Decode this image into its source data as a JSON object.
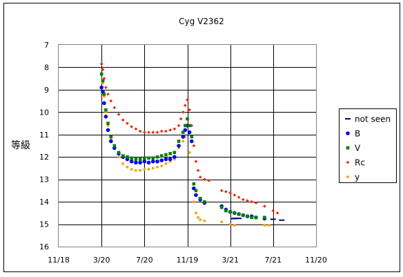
{
  "chart_data": {
    "type": "scatter",
    "title": "Cyg V2362",
    "xlabel": "",
    "ylabel": "等級",
    "x_ticks": [
      "11/18",
      "3/20",
      "7/20",
      "11/19",
      "3/21",
      "7/21",
      "11/20"
    ],
    "y_ticks": [
      7,
      8,
      9,
      10,
      11,
      12,
      13,
      14,
      15,
      16
    ],
    "xlim": [
      0,
      6
    ],
    "ylim": [
      7,
      16
    ],
    "y_inverted": true,
    "grid": true,
    "legend_position": "right",
    "series": [
      {
        "name": "not seen",
        "color": "#000080",
        "marker": "dash",
        "points": [
          [
            4.08,
            14.75
          ],
          [
            4.12,
            14.74
          ],
          [
            4.2,
            14.74
          ],
          [
            5.0,
            14.78
          ],
          [
            5.2,
            14.82
          ]
        ]
      },
      {
        "name": "B",
        "color": "#0000ff",
        "marker": "circle",
        "points": [
          [
            1.0,
            8.9
          ],
          [
            1.03,
            9.1
          ],
          [
            1.06,
            9.6
          ],
          [
            1.1,
            10.2
          ],
          [
            1.15,
            10.8
          ],
          [
            1.22,
            11.3
          ],
          [
            1.3,
            11.6
          ],
          [
            1.4,
            11.85
          ],
          [
            1.5,
            12.0
          ],
          [
            1.6,
            12.1
          ],
          [
            1.7,
            12.2
          ],
          [
            1.8,
            12.25
          ],
          [
            1.9,
            12.25
          ],
          [
            2.0,
            12.2
          ],
          [
            2.1,
            12.25
          ],
          [
            2.2,
            12.2
          ],
          [
            2.3,
            12.2
          ],
          [
            2.4,
            12.15
          ],
          [
            2.5,
            12.1
          ],
          [
            2.6,
            12.1
          ],
          [
            2.7,
            12.0
          ],
          [
            2.8,
            11.5
          ],
          [
            2.9,
            11.1
          ],
          [
            2.95,
            10.8
          ],
          [
            3.0,
            10.6
          ],
          [
            3.05,
            10.9
          ],
          [
            3.1,
            11.3
          ],
          [
            3.15,
            13.4
          ],
          [
            3.2,
            13.7
          ],
          [
            3.3,
            13.9
          ],
          [
            3.4,
            14.05
          ],
          [
            3.8,
            14.2
          ],
          [
            3.9,
            14.35
          ],
          [
            4.0,
            14.45
          ],
          [
            4.1,
            14.5
          ],
          [
            4.2,
            14.55
          ],
          [
            4.3,
            14.6
          ],
          [
            4.4,
            14.65
          ],
          [
            4.5,
            14.65
          ],
          [
            4.6,
            14.7
          ],
          [
            4.8,
            14.75
          ]
        ]
      },
      {
        "name": "V",
        "color": "#008000",
        "marker": "square",
        "points": [
          [
            1.0,
            8.3
          ],
          [
            1.03,
            8.6
          ],
          [
            1.06,
            9.2
          ],
          [
            1.1,
            9.9
          ],
          [
            1.15,
            10.5
          ],
          [
            1.22,
            11.1
          ],
          [
            1.3,
            11.5
          ],
          [
            1.4,
            11.8
          ],
          [
            1.5,
            11.95
          ],
          [
            1.6,
            12.0
          ],
          [
            1.7,
            12.05
          ],
          [
            1.8,
            12.1
          ],
          [
            1.9,
            12.1
          ],
          [
            2.0,
            12.05
          ],
          [
            2.1,
            12.05
          ],
          [
            2.2,
            12.05
          ],
          [
            2.3,
            12.0
          ],
          [
            2.4,
            11.95
          ],
          [
            2.5,
            11.9
          ],
          [
            2.6,
            11.85
          ],
          [
            2.7,
            11.8
          ],
          [
            2.8,
            11.3
          ],
          [
            2.9,
            10.9
          ],
          [
            2.95,
            10.6
          ],
          [
            3.0,
            10.3
          ],
          [
            3.05,
            10.6
          ],
          [
            3.1,
            11.1
          ],
          [
            3.15,
            13.2
          ],
          [
            3.2,
            13.5
          ],
          [
            3.3,
            13.85
          ],
          [
            3.4,
            14.0
          ],
          [
            3.8,
            14.25
          ],
          [
            3.9,
            14.4
          ],
          [
            4.0,
            14.45
          ],
          [
            4.1,
            14.5
          ],
          [
            4.2,
            14.55
          ],
          [
            4.3,
            14.6
          ],
          [
            4.4,
            14.65
          ],
          [
            4.5,
            14.7
          ],
          [
            4.6,
            14.7
          ],
          [
            4.8,
            14.7
          ]
        ]
      },
      {
        "name": "Rc",
        "color": "#ff2000",
        "marker": "diamond",
        "points": [
          [
            1.0,
            7.85
          ],
          [
            1.03,
            8.1
          ],
          [
            1.06,
            8.5
          ],
          [
            1.1,
            8.9
          ],
          [
            1.15,
            9.2
          ],
          [
            1.22,
            9.5
          ],
          [
            1.3,
            9.8
          ],
          [
            1.4,
            10.1
          ],
          [
            1.5,
            10.35
          ],
          [
            1.6,
            10.5
          ],
          [
            1.7,
            10.65
          ],
          [
            1.8,
            10.75
          ],
          [
            1.9,
            10.85
          ],
          [
            2.0,
            10.9
          ],
          [
            2.1,
            10.9
          ],
          [
            2.2,
            10.9
          ],
          [
            2.3,
            10.9
          ],
          [
            2.4,
            10.85
          ],
          [
            2.5,
            10.85
          ],
          [
            2.6,
            10.8
          ],
          [
            2.7,
            10.75
          ],
          [
            2.8,
            10.6
          ],
          [
            2.85,
            10.3
          ],
          [
            2.9,
            10.0
          ],
          [
            2.95,
            9.7
          ],
          [
            3.0,
            9.45
          ],
          [
            3.05,
            9.9
          ],
          [
            3.1,
            10.6
          ],
          [
            3.15,
            11.5
          ],
          [
            3.2,
            12.2
          ],
          [
            3.25,
            12.6
          ],
          [
            3.3,
            12.9
          ],
          [
            3.4,
            13.0
          ],
          [
            3.5,
            13.05
          ],
          [
            3.8,
            13.5
          ],
          [
            3.9,
            13.55
          ],
          [
            4.0,
            13.6
          ],
          [
            4.1,
            13.7
          ],
          [
            4.2,
            13.8
          ],
          [
            4.3,
            13.9
          ],
          [
            4.4,
            13.95
          ],
          [
            4.5,
            14.0
          ],
          [
            4.6,
            14.05
          ],
          [
            4.8,
            14.2
          ],
          [
            5.0,
            14.4
          ],
          [
            5.1,
            14.5
          ]
        ]
      },
      {
        "name": "y",
        "color": "#ffa000",
        "marker": "circle-small",
        "points": [
          [
            1.03,
            8.7
          ],
          [
            1.06,
            9.3
          ],
          [
            1.1,
            10.0
          ],
          [
            1.15,
            10.6
          ],
          [
            1.22,
            11.2
          ],
          [
            1.3,
            11.6
          ],
          [
            1.4,
            12.0
          ],
          [
            1.5,
            12.3
          ],
          [
            1.6,
            12.45
          ],
          [
            1.7,
            12.55
          ],
          [
            1.8,
            12.6
          ],
          [
            1.9,
            12.6
          ],
          [
            2.0,
            12.55
          ],
          [
            2.1,
            12.55
          ],
          [
            2.2,
            12.5
          ],
          [
            2.3,
            12.45
          ],
          [
            2.4,
            12.4
          ],
          [
            2.5,
            12.3
          ],
          [
            2.6,
            12.2
          ],
          [
            2.7,
            12.1
          ],
          [
            2.8,
            11.6
          ],
          [
            2.9,
            11.3
          ],
          [
            2.95,
            11.1
          ],
          [
            3.05,
            11.8
          ],
          [
            3.15,
            14.0
          ],
          [
            3.2,
            14.5
          ],
          [
            3.25,
            14.7
          ],
          [
            3.3,
            14.8
          ],
          [
            3.4,
            14.85
          ],
          [
            3.8,
            14.9
          ],
          [
            4.0,
            15.0
          ],
          [
            4.1,
            15.05
          ],
          [
            4.8,
            15.05
          ],
          [
            4.9,
            15.05
          ]
        ]
      }
    ]
  }
}
